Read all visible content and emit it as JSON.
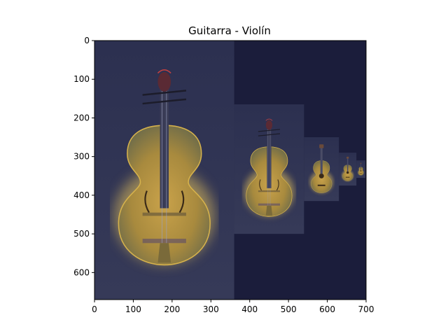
{
  "chart_data": {
    "type": "image",
    "title": "Guitarra - Violín",
    "xlim": [
      0,
      700
    ],
    "ylim": [
      670,
      0
    ],
    "x_ticks": [
      0,
      100,
      200,
      300,
      400,
      500,
      600,
      700
    ],
    "y_ticks": [
      0,
      100,
      200,
      300,
      400,
      500,
      600
    ],
    "grid": false,
    "background_color": "#1b1d3b",
    "image_panels": [
      {
        "subject": "violin",
        "x0": 0,
        "x1": 360,
        "y0": 0,
        "y1": 670
      },
      {
        "subject": "violin",
        "x0": 360,
        "x1": 540,
        "y0": 165,
        "y1": 500
      },
      {
        "subject": "guitar",
        "x0": 540,
        "x1": 630,
        "y0": 250,
        "y1": 415
      },
      {
        "subject": "guitar",
        "x0": 630,
        "x1": 675,
        "y0": 290,
        "y1": 375
      },
      {
        "subject": "guitar",
        "x0": 675,
        "x1": 698,
        "y0": 310,
        "y1": 355
      }
    ]
  }
}
